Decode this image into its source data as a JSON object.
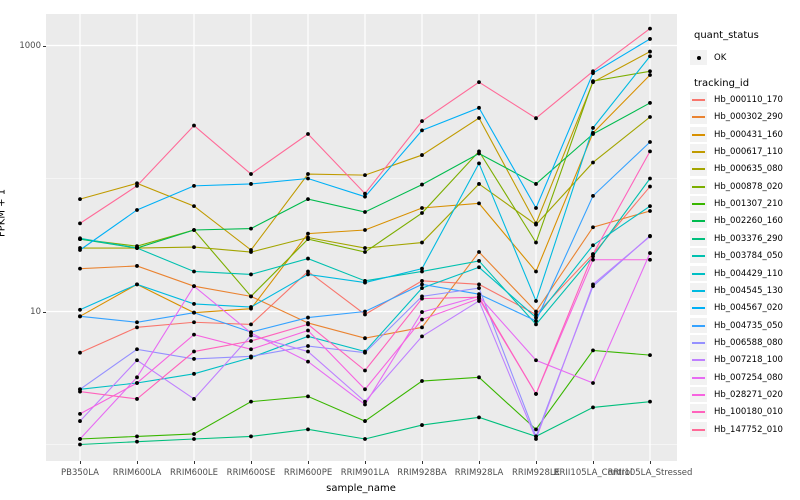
{
  "axes": {
    "y_title": "FPKM + 1",
    "x_title": "sample_name"
  },
  "legend": {
    "quant_status_title": "quant_status",
    "quant_status_ok_label": "OK",
    "tracking_id_title": "tracking_id"
  },
  "style": {
    "panel_bg": "#EBEBEB",
    "grid_color": "#FFFFFF",
    "tick_text_color": "#4D4D4D",
    "legend_key_bg": "#F2F2F2",
    "point_color": "#000000"
  },
  "chart_data": {
    "type": "line",
    "title": "",
    "xlabel": "sample_name",
    "ylabel": "FPKM + 1",
    "yscale": "log10",
    "legend_position": "right",
    "grid": true,
    "y_ticks": [
      {
        "label": "1000",
        "value": 1000
      },
      {
        "label": "10",
        "value": 10
      }
    ],
    "y_minor_breaks": [
      100,
      1
    ],
    "categories": [
      "PB350LA",
      "RRIM600LA",
      "RRIM600LE",
      "RRIM600SE",
      "RRIM600PE",
      "RRIM901LA",
      "RRIM928BA",
      "RRIM928LA",
      "RRIM928LE",
      "RRII105LA_Control",
      "RRII105LA_Stressed"
    ],
    "quant_status": "OK",
    "series": [
      {
        "name": "Hb_000110_170",
        "color": "#F8766D",
        "values": [
          4.9,
          7.6,
          8.3,
          8.0,
          20,
          9.5,
          17,
          16,
          9.5,
          27,
          87
        ]
      },
      {
        "name": "Hb_000302_290",
        "color": "#EA8331",
        "values": [
          21,
          22,
          15.5,
          13,
          8.2,
          6.3,
          7.6,
          28,
          10,
          43,
          57
        ]
      },
      {
        "name": "Hb_000431_160",
        "color": "#D89000",
        "values": [
          9.2,
          16,
          9.8,
          10.5,
          38.5,
          41,
          60,
          65,
          20,
          220,
          600
        ]
      },
      {
        "name": "Hb_000617_110",
        "color": "#C09B00",
        "values": [
          70,
          92,
          62,
          29,
          108,
          106,
          150,
          285,
          46,
          530,
          900
        ]
      },
      {
        "name": "Hb_000635_080",
        "color": "#A3A500",
        "values": [
          30,
          30,
          30.5,
          28,
          36,
          30,
          33,
          91,
          45,
          132,
          290
        ]
      },
      {
        "name": "Hb_000878_020",
        "color": "#7CAE00",
        "values": [
          35,
          31,
          41,
          13,
          35,
          28,
          55,
          160,
          33,
          540,
          640
        ]
      },
      {
        "name": "Hb_001307_210",
        "color": "#39B600",
        "values": [
          1.1,
          1.15,
          1.2,
          2.1,
          2.3,
          1.5,
          3.0,
          3.2,
          1.3,
          5.1,
          4.7
        ]
      },
      {
        "name": "Hb_002260_160",
        "color": "#00BB4E",
        "values": [
          35,
          30,
          41,
          42,
          70,
          56,
          90,
          154,
          91,
          216,
          370
        ]
      },
      {
        "name": "Hb_003376_290",
        "color": "#00BF7D",
        "values": [
          1.0,
          1.05,
          1.1,
          1.15,
          1.3,
          1.1,
          1.4,
          1.6,
          1.15,
          1.9,
          2.1
        ]
      },
      {
        "name": "Hb_003784_050",
        "color": "#00C0AF",
        "values": [
          35.5,
          30,
          20,
          19,
          25,
          17,
          20,
          24,
          8,
          26,
          100
        ]
      },
      {
        "name": "Hb_004429_110",
        "color": "#00BFC4",
        "values": [
          2.6,
          2.9,
          3.4,
          4.5,
          6.5,
          5.0,
          15,
          21.5,
          9,
          31.5,
          62
        ]
      },
      {
        "name": "Hb_004545_130",
        "color": "#00BAE0",
        "values": [
          10.3,
          16,
          11.4,
          10.8,
          19,
          16.5,
          21,
          130,
          12,
          240,
          830
        ]
      },
      {
        "name": "Hb_004567_020",
        "color": "#00B0F6",
        "values": [
          29,
          58,
          88,
          91,
          100,
          73,
          230,
          340,
          60,
          620,
          1120
        ]
      },
      {
        "name": "Hb_004735_050",
        "color": "#35A2FF",
        "values": [
          9.2,
          8.3,
          9.8,
          7.0,
          9.0,
          10,
          16,
          13.5,
          8.5,
          74,
          188
        ]
      },
      {
        "name": "Hb_006588_080",
        "color": "#9590FF",
        "values": [
          2.6,
          5.2,
          4.4,
          4.6,
          5.5,
          4.9,
          13,
          15,
          1.15,
          15.5,
          37
        ]
      },
      {
        "name": "Hb_007218_100",
        "color": "#BF80FF",
        "values": [
          1.5,
          4.3,
          2.2,
          6.6,
          5.0,
          2.1,
          6.5,
          12,
          1.1,
          16,
          36.7
        ]
      },
      {
        "name": "Hb_007254_080",
        "color": "#E76BF3",
        "values": [
          1.1,
          3.2,
          15.5,
          6.9,
          4.2,
          2.0,
          9.9,
          13,
          4.3,
          2.9,
          27.5
        ]
      },
      {
        "name": "Hb_028271_020",
        "color": "#F763E0",
        "values": [
          1.7,
          2.9,
          6.7,
          5.2,
          7.2,
          2.6,
          8.7,
          12.5,
          2.4,
          24.5,
          24.5
        ]
      },
      {
        "name": "Hb_100180_010",
        "color": "#FF62BC",
        "values": [
          2.5,
          2.2,
          5.0,
          6.0,
          8.0,
          3.6,
          12.5,
          12.8,
          2.4,
          27,
          160
        ]
      },
      {
        "name": "Hb_147752_010",
        "color": "#FF6A98",
        "values": [
          46,
          88,
          250,
          108,
          216,
          77,
          270,
          530,
          284,
          640,
          1340
        ]
      }
    ]
  }
}
